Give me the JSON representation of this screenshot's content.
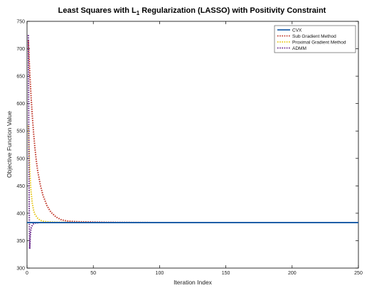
{
  "chart_data": {
    "type": "line",
    "title": "Least Squares with L",
    "title_subscript": "1",
    "title_rest": " Regularization (LASSO) with Positivity Constraint",
    "xlabel": "Iteration Index",
    "ylabel": "Objective Function Value",
    "xlim": [
      0,
      250
    ],
    "ylim": [
      300,
      750
    ],
    "xticks": [
      0,
      50,
      100,
      150,
      200,
      250
    ],
    "yticks": [
      300,
      350,
      400,
      450,
      500,
      550,
      600,
      650,
      700,
      750
    ],
    "grid": false,
    "legend_position": "top-right",
    "series": [
      {
        "name": "CVX",
        "color": "#1f5fa8",
        "style": "solid",
        "x": [
          0,
          250
        ],
        "y": [
          383,
          383
        ]
      },
      {
        "name": "Sub Gradient Method",
        "color": "#c0392b",
        "style": "dotted",
        "x": [
          1,
          2,
          3,
          4,
          5,
          6,
          7,
          8,
          10,
          12,
          15,
          18,
          22,
          26,
          30,
          35,
          40,
          50,
          60,
          80,
          100,
          150,
          200,
          250
        ],
        "y": [
          715,
          660,
          615,
          577,
          545,
          518,
          496,
          478,
          452,
          433,
          414,
          402,
          393,
          388,
          386,
          385,
          384.5,
          384,
          383.5,
          383.2,
          383,
          383,
          383,
          383
        ]
      },
      {
        "name": "Proximal Gradient Method",
        "color": "#e6c619",
        "style": "dotted",
        "x": [
          1,
          2,
          3,
          4,
          5,
          6,
          8,
          10,
          12,
          15,
          20,
          30,
          50,
          100,
          250
        ],
        "y": [
          560,
          480,
          440,
          418,
          405,
          398,
          391,
          387,
          385.5,
          384.5,
          383.8,
          383.3,
          383,
          383,
          383
        ]
      },
      {
        "name": "ADMM",
        "color": "#6a2a8c",
        "style": "dotted",
        "x": [
          1,
          1.3,
          1.6,
          2,
          2.5,
          3,
          4,
          5,
          6,
          8,
          10,
          15,
          250
        ],
        "y": [
          725,
          560,
          420,
          335,
          360,
          372,
          378,
          381,
          382,
          382.5,
          383,
          383,
          383
        ]
      }
    ]
  }
}
